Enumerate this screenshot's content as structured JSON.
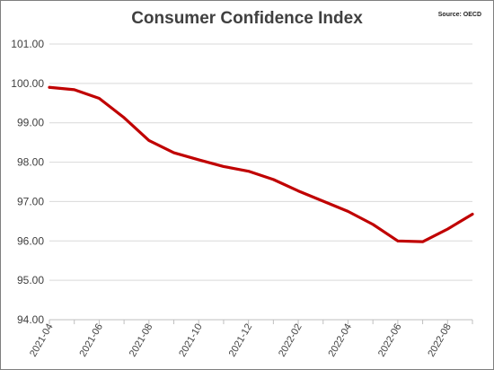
{
  "chart_data": {
    "type": "line",
    "title": "Consumer Confidence Index",
    "source": "Source: OECD",
    "xlabel": "",
    "ylabel": "",
    "ylim": [
      94.0,
      101.0
    ],
    "yticks": [
      "94.00",
      "95.00",
      "96.00",
      "97.00",
      "98.00",
      "99.00",
      "100.00",
      "101.00"
    ],
    "xtick_labels": [
      "2021-04",
      "2021-06",
      "2021-08",
      "2021-10",
      "2021-12",
      "2022-02",
      "2022-04",
      "2022-06",
      "2022-08"
    ],
    "x": [
      "2021-04",
      "2021-05",
      "2021-06",
      "2021-07",
      "2021-08",
      "2021-09",
      "2021-10",
      "2021-11",
      "2021-12",
      "2022-01",
      "2022-02",
      "2022-03",
      "2022-04",
      "2022-05",
      "2022-06",
      "2022-07",
      "2022-08",
      "2022-09"
    ],
    "series": [
      {
        "name": "",
        "color": "#c00000",
        "values": [
          99.9,
          99.84,
          99.62,
          99.13,
          98.55,
          98.24,
          98.06,
          97.89,
          97.77,
          97.56,
          97.27,
          97.01,
          96.75,
          96.42,
          96.0,
          95.98,
          96.3,
          96.68
        ]
      }
    ],
    "grid": true,
    "legend": "none"
  }
}
